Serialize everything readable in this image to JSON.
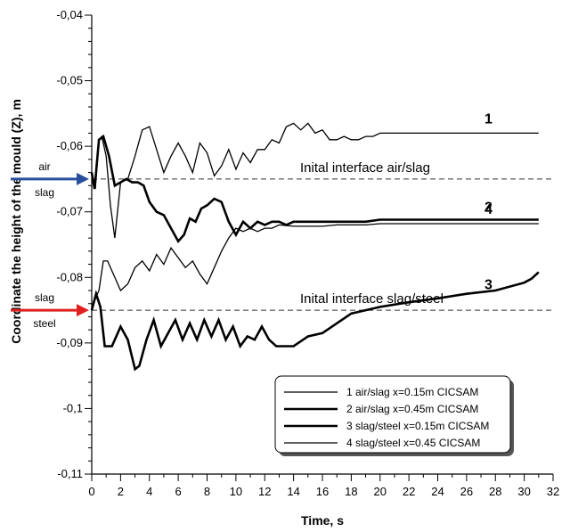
{
  "chart_data": {
    "type": "line",
    "xlabel": "Time, s",
    "ylabel": "Coordinate the height of the mould (Z), m",
    "xlim": [
      0,
      32
    ],
    "ylim": [
      -0.11,
      -0.04
    ],
    "x_ticks": [
      "0",
      "2",
      "4",
      "6",
      "8",
      "10",
      "12",
      "14",
      "16",
      "18",
      "20",
      "22",
      "24",
      "26",
      "28",
      "30",
      "32"
    ],
    "y_ticks": [
      "-0,04",
      "-0,05",
      "-0,06",
      "-0,07",
      "-0,08",
      "-0,09",
      "-0,1",
      "-0,11"
    ],
    "reference_lines": [
      {
        "label": "Inital interface air/slag",
        "y": -0.065
      },
      {
        "label": "Inital interface slag/steel",
        "y": -0.085
      }
    ],
    "arrows": [
      {
        "top": "air",
        "bottom": "slag",
        "y": -0.065,
        "color": "#2a4f9c"
      },
      {
        "top": "slag",
        "bottom": "steel",
        "y": -0.085,
        "color": "#e02020"
      }
    ],
    "series": [
      {
        "name": "1 air/slag x=0.15m CICSAM",
        "curve_label": "1",
        "width": 1.3,
        "x": [
          0,
          0.25,
          0.5,
          0.7,
          1.0,
          1.3,
          1.6,
          2.0,
          2.5,
          3.0,
          3.5,
          4.0,
          4.5,
          5.0,
          5.5,
          6.0,
          6.5,
          7.0,
          7.5,
          8.0,
          8.5,
          9.0,
          9.5,
          10.0,
          10.5,
          11.0,
          11.5,
          12.0,
          12.5,
          13.0,
          13.5,
          14.0,
          14.5,
          15.0,
          15.5,
          16.0,
          16.5,
          17.0,
          17.5,
          18.0,
          18.5,
          19.0,
          19.5,
          20.0,
          22.0,
          25.0,
          28.0,
          31.0
        ],
        "y": [
          -0.065,
          -0.0665,
          -0.059,
          -0.0585,
          -0.0615,
          -0.069,
          -0.074,
          -0.0655,
          -0.065,
          -0.0615,
          -0.0575,
          -0.057,
          -0.0605,
          -0.064,
          -0.0615,
          -0.0595,
          -0.0615,
          -0.064,
          -0.0595,
          -0.061,
          -0.0645,
          -0.063,
          -0.0605,
          -0.0635,
          -0.061,
          -0.0625,
          -0.0605,
          -0.0605,
          -0.059,
          -0.0595,
          -0.057,
          -0.0565,
          -0.0575,
          -0.0565,
          -0.058,
          -0.0575,
          -0.059,
          -0.059,
          -0.0585,
          -0.059,
          -0.059,
          -0.0585,
          -0.0585,
          -0.058,
          -0.058,
          -0.058,
          -0.058,
          -0.058
        ]
      },
      {
        "name": "2 air/slag x=0.45m CICSAM",
        "curve_label": "2",
        "width": 2.6,
        "x": [
          0,
          0.2,
          0.5,
          0.8,
          1.2,
          1.6,
          2.0,
          2.4,
          2.8,
          3.2,
          3.6,
          4.0,
          4.5,
          5.0,
          5.5,
          6.0,
          6.4,
          6.8,
          7.2,
          7.6,
          8.0,
          8.5,
          9.0,
          9.5,
          10.0,
          10.5,
          11.0,
          11.5,
          12.0,
          12.5,
          13.0,
          13.5,
          14.0,
          15.0,
          16.0,
          17.0,
          18.0,
          19.0,
          20.0,
          25.0,
          31.0
        ],
        "y": [
          -0.064,
          -0.0665,
          -0.059,
          -0.0585,
          -0.0615,
          -0.066,
          -0.0655,
          -0.065,
          -0.0655,
          -0.0655,
          -0.066,
          -0.0685,
          -0.07,
          -0.0705,
          -0.0725,
          -0.0745,
          -0.0735,
          -0.071,
          -0.0715,
          -0.0695,
          -0.069,
          -0.068,
          -0.0685,
          -0.0715,
          -0.0735,
          -0.0715,
          -0.0725,
          -0.0715,
          -0.072,
          -0.0715,
          -0.0715,
          -0.072,
          -0.0715,
          -0.0715,
          -0.0715,
          -0.0715,
          -0.0715,
          -0.0715,
          -0.0712,
          -0.0712,
          -0.0712
        ]
      },
      {
        "name": "3 slag/steel x=0.15m CICSAM",
        "curve_label": "3",
        "width": 2.6,
        "x": [
          0,
          0.3,
          0.6,
          0.9,
          1.4,
          2.0,
          2.5,
          3.0,
          3.3,
          3.8,
          4.3,
          4.8,
          5.3,
          5.8,
          6.3,
          6.8,
          7.3,
          7.8,
          8.3,
          8.8,
          9.3,
          9.8,
          10.3,
          10.8,
          11.3,
          11.8,
          12.3,
          12.8,
          13.3,
          14.0,
          15.0,
          16.0,
          17.0,
          18.0,
          19.0,
          20.0,
          22.0,
          24.0,
          26.0,
          28.0,
          30.0,
          30.5,
          31.0
        ],
        "y": [
          -0.085,
          -0.0825,
          -0.0845,
          -0.0905,
          -0.0905,
          -0.0875,
          -0.0895,
          -0.094,
          -0.0935,
          -0.0895,
          -0.0865,
          -0.0905,
          -0.0885,
          -0.0865,
          -0.0895,
          -0.087,
          -0.0895,
          -0.0865,
          -0.089,
          -0.0865,
          -0.0895,
          -0.0875,
          -0.0905,
          -0.089,
          -0.0895,
          -0.0875,
          -0.0895,
          -0.0905,
          -0.0905,
          -0.0905,
          -0.089,
          -0.0885,
          -0.087,
          -0.0855,
          -0.085,
          -0.0845,
          -0.0838,
          -0.0832,
          -0.0825,
          -0.082,
          -0.0808,
          -0.0802,
          -0.0792
        ]
      },
      {
        "name": "4 slag/steel x=0.45 CICSAM",
        "curve_label": "4",
        "width": 1.3,
        "x": [
          0,
          0.2,
          0.5,
          0.8,
          1.1,
          1.5,
          2.0,
          2.5,
          3.0,
          3.5,
          4.0,
          4.5,
          5.0,
          5.5,
          6.0,
          6.5,
          7.0,
          7.5,
          8.0,
          8.5,
          9.0,
          9.5,
          10.0,
          10.5,
          11.0,
          11.5,
          12.0,
          12.5,
          13.0,
          14.0,
          15.0,
          16.0,
          17.0,
          18.0,
          19.0,
          20.0,
          25.0,
          31.0
        ],
        "y": [
          -0.085,
          -0.0835,
          -0.082,
          -0.0775,
          -0.0775,
          -0.0795,
          -0.082,
          -0.081,
          -0.0785,
          -0.0775,
          -0.079,
          -0.0765,
          -0.078,
          -0.0755,
          -0.077,
          -0.0785,
          -0.0775,
          -0.0795,
          -0.081,
          -0.0785,
          -0.076,
          -0.074,
          -0.0725,
          -0.073,
          -0.0725,
          -0.073,
          -0.0725,
          -0.0725,
          -0.072,
          -0.0722,
          -0.0722,
          -0.0722,
          -0.072,
          -0.072,
          -0.072,
          -0.0718,
          -0.0718,
          -0.0718
        ]
      }
    ],
    "legend": {
      "position": "bottom-right",
      "entries": [
        "1 air/slag x=0.15m CICSAM",
        "2 air/slag x=0.45m CICSAM",
        "3 slag/steel x=0.15m CICSAM",
        "4 slag/steel x=0.45 CICSAM"
      ]
    }
  }
}
